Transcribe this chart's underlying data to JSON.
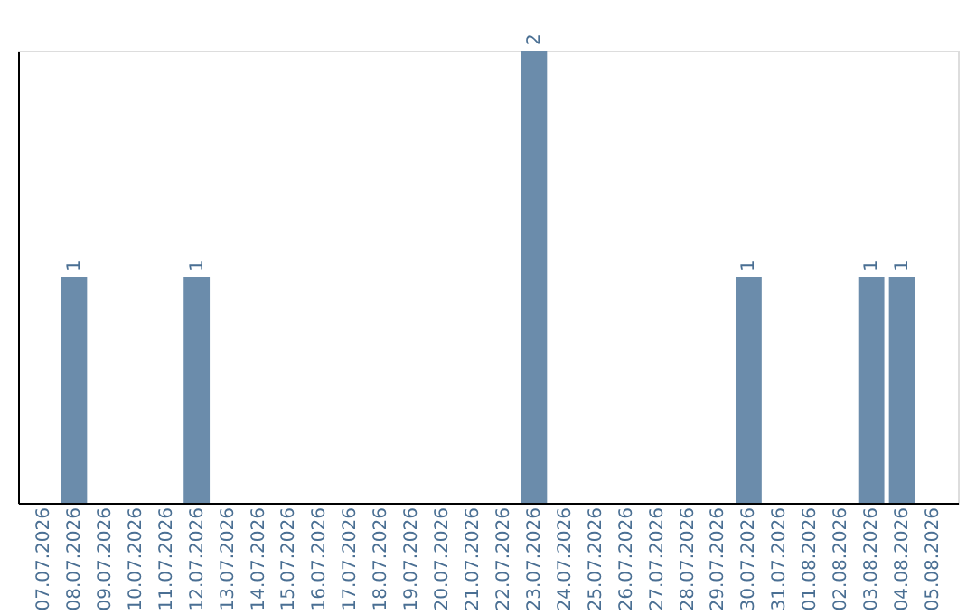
{
  "chart_data": {
    "type": "bar",
    "categories": [
      "07.07.2026",
      "08.07.2026",
      "09.07.2026",
      "10.07.2026",
      "11.07.2026",
      "12.07.2026",
      "13.07.2026",
      "14.07.2026",
      "15.07.2026",
      "16.07.2026",
      "17.07.2026",
      "18.07.2026",
      "19.07.2026",
      "20.07.2026",
      "21.07.2026",
      "22.07.2026",
      "23.07.2026",
      "24.07.2026",
      "25.07.2026",
      "26.07.2026",
      "27.07.2026",
      "28.07.2026",
      "29.07.2026",
      "30.07.2026",
      "31.07.2026",
      "01.08.2026",
      "02.08.2026",
      "03.08.2026",
      "04.08.2026",
      "05.08.2026"
    ],
    "values": [
      0,
      1,
      0,
      0,
      0,
      1,
      0,
      0,
      0,
      0,
      0,
      0,
      0,
      0,
      0,
      0,
      2,
      0,
      0,
      0,
      0,
      0,
      0,
      1,
      0,
      0,
      0,
      1,
      1,
      0
    ],
    "value_labels": [
      null,
      "1",
      null,
      null,
      null,
      "1",
      null,
      null,
      null,
      null,
      null,
      null,
      null,
      null,
      null,
      null,
      "2",
      null,
      null,
      null,
      null,
      null,
      null,
      "1",
      null,
      null,
      null,
      "1",
      "1",
      null
    ],
    "color": "#6b8cab",
    "tick_labels": "x",
    "grid": false
  }
}
